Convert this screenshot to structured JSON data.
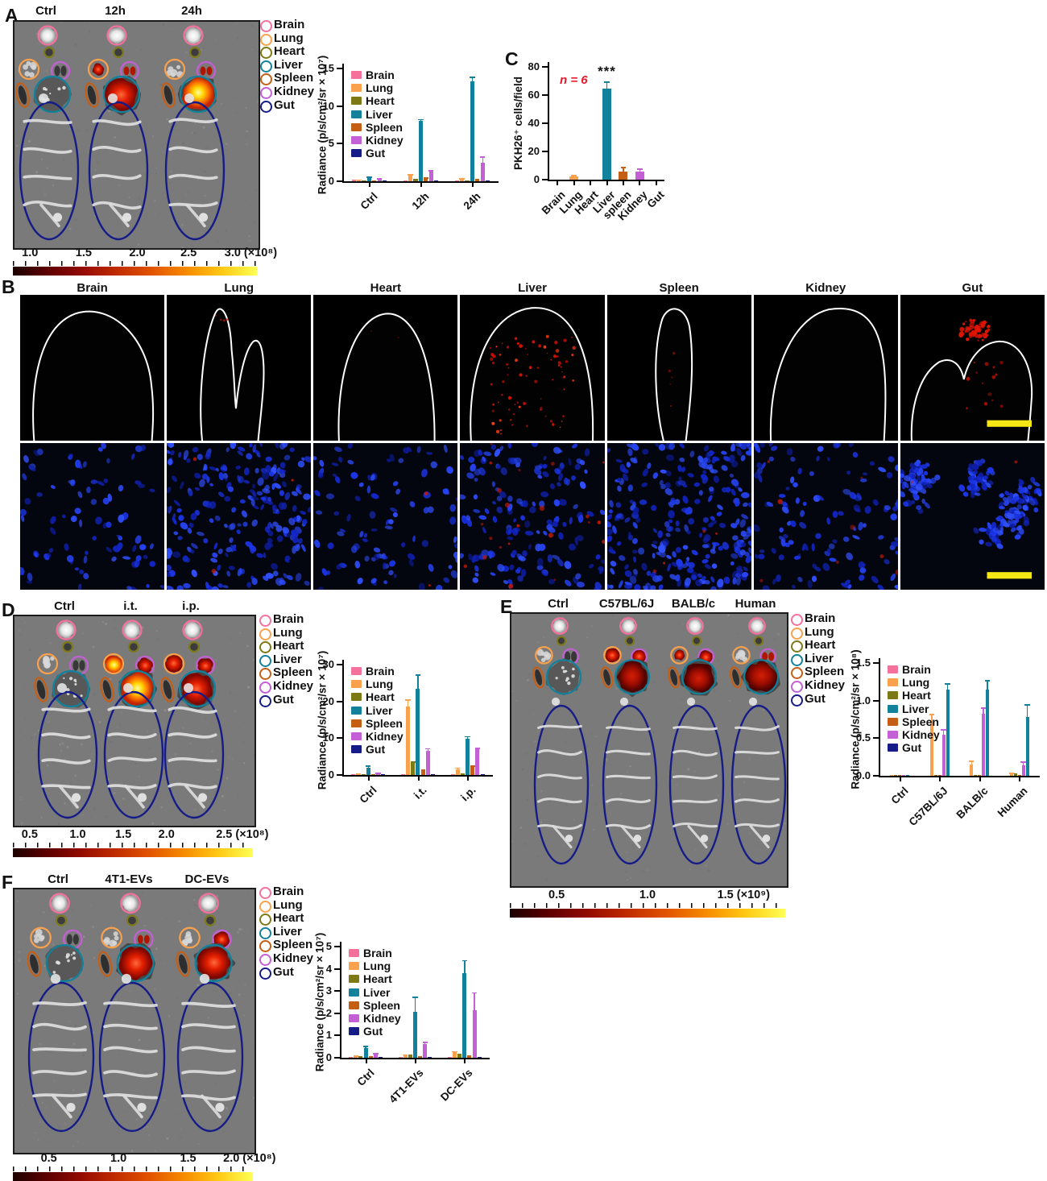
{
  "organs": [
    {
      "name": "Brain",
      "color": "#f4719c"
    },
    {
      "name": "Lung",
      "color": "#f9a14c"
    },
    {
      "name": "Heart",
      "color": "#7d7a16"
    },
    {
      "name": "Liver",
      "color": "#12829c"
    },
    {
      "name": "Spleen",
      "color": "#c55e15"
    },
    {
      "name": "Kidney",
      "color": "#c45fd6"
    },
    {
      "name": "Gut",
      "color": "#151c87"
    }
  ],
  "scalebar_gradient": [
    "#1c0000",
    "#5e0000",
    "#940b00",
    "#c12c00",
    "#e25400",
    "#f78c00",
    "#ffc914",
    "#ffff55"
  ],
  "panels": {
    "A": {
      "label": "A",
      "columns": [
        "Ctrl",
        "12h",
        "24h"
      ],
      "scale_ticks": [
        "1.0",
        "1.5",
        "2.0",
        "2.5",
        "3.0"
      ],
      "scale_suffix": "(×10⁸)",
      "mice": [
        {
          "label": "Ctrl",
          "lung": "gray",
          "kidney": "gray",
          "liver": "gray"
        },
        {
          "label": "12h",
          "lung": "spot",
          "kidney": "spot",
          "liver": "red"
        },
        {
          "label": "24h",
          "lung": "gray",
          "kidney": "spot",
          "liver": "hot"
        }
      ]
    },
    "B": {
      "label": "B",
      "columns": [
        "Brain",
        "Lung",
        "Heart",
        "Liver",
        "Spleen",
        "Kidney",
        "Gut"
      ]
    },
    "C": {
      "label": "C",
      "annotation_n": "n = 6",
      "sig": "***"
    },
    "D": {
      "label": "D",
      "columns": [
        "Ctrl",
        "i.t.",
        "i.p."
      ],
      "scale_ticks": [
        "0.5",
        "1.0",
        "1.5",
        "2.0",
        "2.5"
      ],
      "scale_suffix": "(×10⁸)",
      "mice": [
        {
          "label": "Ctrl",
          "lung": "gray",
          "kidney": "gray",
          "liver": "gray"
        },
        {
          "label": "i.t.",
          "lung": "hot",
          "kidney": "red",
          "liver": "hot"
        },
        {
          "label": "i.p.",
          "lung": "red",
          "kidney": "red",
          "liver": "red"
        }
      ]
    },
    "E": {
      "label": "E",
      "columns": [
        "Ctrl",
        "C57BL/6J",
        "BALB/c",
        "Human"
      ],
      "scale_ticks": [
        "0.5",
        "1.0",
        "1.5"
      ],
      "scale_suffix": "(×10⁹)",
      "mice": [
        {
          "label": "Ctrl",
          "lung": "gray",
          "kidney": "gray",
          "liver": "gray"
        },
        {
          "label": "C57BL/6J",
          "lung": "red",
          "kidney": "red",
          "liver": "darkred"
        },
        {
          "label": "BALB/c",
          "lung": "spot",
          "kidney": "red",
          "liver": "darkred"
        },
        {
          "label": "Human",
          "lung": "gray",
          "kidney": "spot",
          "liver": "darkred"
        }
      ]
    },
    "F": {
      "label": "F",
      "columns": [
        "Ctrl",
        "4T1-EVs",
        "DC-EVs"
      ],
      "scale_ticks": [
        "0.5",
        "1.0",
        "1.5",
        "2.0"
      ],
      "scale_suffix": "(×10⁸)",
      "mice": [
        {
          "label": "Ctrl",
          "lung": "gray",
          "kidney": "gray",
          "liver": "gray"
        },
        {
          "label": "4T1-EVs",
          "lung": "gray",
          "kidney": "spot",
          "liver": "red"
        },
        {
          "label": "DC-EVs",
          "lung": "gray",
          "kidney": "red",
          "liver": "red"
        }
      ]
    }
  },
  "chart_data": [
    {
      "id": "A",
      "type": "bar",
      "title": "",
      "categories": [
        "Ctrl",
        "12h",
        "24h"
      ],
      "ylabel": "Radiance (p/s/cm²/sr × 10⁷)",
      "ylim": [
        0,
        15
      ],
      "yticks": [
        "0",
        "5",
        "10",
        "15"
      ],
      "legend_position": "top-left",
      "grid": false,
      "series": [
        {
          "name": "Brain",
          "values": [
            0.2,
            0.1,
            0.1
          ],
          "errors": [
            0,
            0,
            0
          ]
        },
        {
          "name": "Lung",
          "values": [
            0.2,
            0.8,
            0.3
          ],
          "errors": [
            0.05,
            0.15,
            0.1
          ]
        },
        {
          "name": "Heart",
          "values": [
            0.15,
            0.3,
            0.15
          ],
          "errors": [
            0,
            0,
            0
          ]
        },
        {
          "name": "Liver",
          "values": [
            0.5,
            8.0,
            13.3
          ],
          "errors": [
            0.1,
            0.3,
            0.6
          ]
        },
        {
          "name": "Spleen",
          "values": [
            0.15,
            0.4,
            0.35
          ],
          "errors": [
            0,
            0.1,
            0
          ]
        },
        {
          "name": "Kidney",
          "values": [
            0.35,
            1.3,
            2.5
          ],
          "errors": [
            0.05,
            0.2,
            0.8
          ]
        },
        {
          "name": "Gut",
          "values": [
            0.05,
            0.05,
            0.05
          ],
          "errors": [
            0,
            0,
            0
          ]
        }
      ]
    },
    {
      "id": "C",
      "type": "bar",
      "title": "",
      "categories": [
        "Brain",
        "Lung",
        "Heart",
        "Liver",
        "spleen",
        "Kidney",
        "Gut"
      ],
      "ylabel": "PKH26⁺ cells/field",
      "ylim": [
        0,
        80
      ],
      "yticks": [
        "0",
        "20",
        "40",
        "60",
        "80"
      ],
      "legend_position": "none",
      "grid": false,
      "values": [
        0,
        2.5,
        0,
        64.5,
        6,
        5.5,
        0
      ],
      "errors": [
        0,
        0.8,
        0,
        5,
        3,
        2.5,
        0
      ],
      "annotations": [
        {
          "text": "n = 6",
          "color": "#e8192c"
        },
        {
          "text": "***",
          "above_category": "Liver"
        }
      ]
    },
    {
      "id": "D",
      "type": "bar",
      "title": "",
      "categories": [
        "Ctrl",
        "i.t.",
        "i.p."
      ],
      "ylabel": "Radiance (p/s/cm²/sr × 10⁷)",
      "ylim": [
        0,
        30
      ],
      "yticks": [
        "0",
        "10",
        "20",
        "30"
      ],
      "legend_position": "top-left",
      "grid": false,
      "series": [
        {
          "name": "Brain",
          "values": [
            0.05,
            0.05,
            0.05
          ],
          "errors": [
            0,
            0,
            0
          ]
        },
        {
          "name": "Lung",
          "values": [
            0.3,
            18.7,
            1.5
          ],
          "errors": [
            0.1,
            1.8,
            0.5
          ]
        },
        {
          "name": "Heart",
          "values": [
            0.2,
            3.5,
            0.4
          ],
          "errors": [
            0,
            0.2,
            0
          ]
        },
        {
          "name": "Liver",
          "values": [
            2.0,
            23.5,
            9.8
          ],
          "errors": [
            0.6,
            3.8,
            0.8
          ]
        },
        {
          "name": "Spleen",
          "values": [
            0.3,
            1.5,
            2.3
          ],
          "errors": [
            0,
            0,
            0.3
          ]
        },
        {
          "name": "Kidney",
          "values": [
            0.5,
            6.5,
            7.0
          ],
          "errors": [
            0.1,
            0.8,
            0.4
          ]
        },
        {
          "name": "Gut",
          "values": [
            0.05,
            0.05,
            0.05
          ],
          "errors": [
            0,
            0,
            0
          ]
        }
      ]
    },
    {
      "id": "E",
      "type": "bar",
      "title": "",
      "categories": [
        "Ctrl",
        "C57BL/6J",
        "BALB/c",
        "Human"
      ],
      "ylabel": "Radiance (p/s/cm²/sr × 10⁸)",
      "ylim": [
        0,
        1.5
      ],
      "yticks": [
        "0.0",
        "0.5",
        "1.0",
        "1.5"
      ],
      "legend_position": "top-left",
      "grid": false,
      "series": [
        {
          "name": "Brain",
          "values": [
            0,
            0,
            0,
            0
          ],
          "errors": [
            0,
            0,
            0,
            0
          ]
        },
        {
          "name": "Lung",
          "values": [
            0.01,
            0.72,
            0.15,
            0.03
          ],
          "errors": [
            0,
            0.1,
            0.05,
            0.01
          ]
        },
        {
          "name": "Heart",
          "values": [
            0.01,
            0.01,
            0.01,
            0.035
          ],
          "errors": [
            0,
            0,
            0,
            0
          ]
        },
        {
          "name": "Spleen",
          "values": [
            0.005,
            0.005,
            0.01,
            0.015
          ],
          "errors": [
            0,
            0,
            0,
            0
          ]
        },
        {
          "name": "Kidney",
          "values": [
            0.005,
            0.55,
            0.82,
            0.14
          ],
          "errors": [
            0,
            0.07,
            0.09,
            0.05
          ]
        },
        {
          "name": "Liver",
          "values": [
            0.01,
            1.15,
            1.15,
            0.78
          ],
          "errors": [
            0,
            0.08,
            0.12,
            0.17
          ]
        },
        {
          "name": "Gut",
          "values": [
            0,
            0,
            0,
            0
          ],
          "errors": [
            0,
            0,
            0,
            0
          ]
        }
      ]
    },
    {
      "id": "F",
      "type": "bar",
      "title": "",
      "categories": [
        "Ctrl",
        "4T1-EVs",
        "DC-EVs"
      ],
      "ylabel": "Radiance (p/s/cm²/sr × 10⁷)",
      "ylim": [
        0,
        5
      ],
      "yticks": [
        "0",
        "1",
        "2",
        "3",
        "4",
        "5"
      ],
      "legend_position": "top-left",
      "grid": false,
      "series": [
        {
          "name": "Brain",
          "values": [
            0.02,
            0.02,
            0.02
          ],
          "errors": [
            0,
            0,
            0
          ]
        },
        {
          "name": "Lung",
          "values": [
            0.08,
            0.12,
            0.25
          ],
          "errors": [
            0.02,
            0.03,
            0.05
          ]
        },
        {
          "name": "Heart",
          "values": [
            0.08,
            0.15,
            0.18
          ],
          "errors": [
            0,
            0,
            0
          ]
        },
        {
          "name": "Liver",
          "values": [
            0.42,
            2.05,
            3.8
          ],
          "errors": [
            0.12,
            0.7,
            0.6
          ]
        },
        {
          "name": "Spleen",
          "values": [
            0.06,
            0.08,
            0.1
          ],
          "errors": [
            0,
            0,
            0
          ]
        },
        {
          "name": "Kidney",
          "values": [
            0.18,
            0.6,
            2.15
          ],
          "errors": [
            0.04,
            0.12,
            0.8
          ]
        },
        {
          "name": "Gut",
          "values": [
            0.01,
            0.01,
            0.01
          ],
          "errors": [
            0,
            0,
            0
          ]
        }
      ]
    }
  ]
}
